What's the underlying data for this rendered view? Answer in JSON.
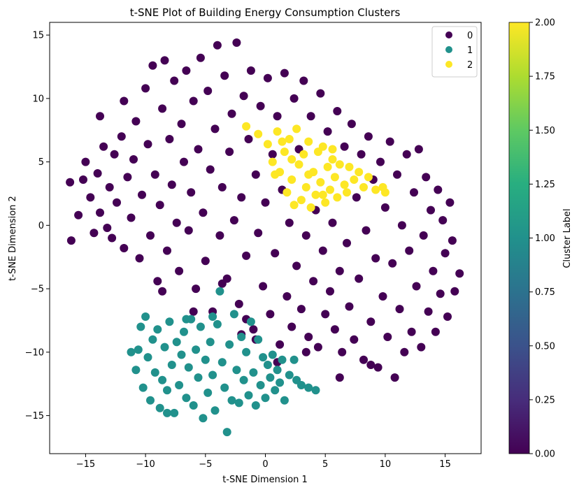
{
  "chart_data": {
    "type": "scatter",
    "title": "t-SNE Plot of Building Energy Consumption Clusters",
    "xlabel": "t-SNE Dimension 1",
    "ylabel": "t-SNE Dimension 2",
    "xlim": [
      -18,
      18
    ],
    "ylim": [
      -18,
      16
    ],
    "xticks": [
      -15,
      -10,
      -5,
      0,
      5,
      10,
      15
    ],
    "yticks": [
      -15,
      -10,
      -5,
      0,
      5,
      10,
      15
    ],
    "grid": false,
    "legend": {
      "placement": "top-right",
      "entries": [
        "0",
        "1",
        "2"
      ]
    },
    "colorbar": {
      "label": "Cluster Label",
      "range": [
        0,
        2
      ],
      "ticks": [
        "0.00",
        "0.25",
        "0.50",
        "0.75",
        "1.00",
        "1.25",
        "1.50",
        "1.75",
        "2.00"
      ],
      "colormap": "viridis"
    },
    "series": [
      {
        "name": "0",
        "color": "#440154",
        "points": [
          [
            -16.3,
            3.4
          ],
          [
            -16.2,
            -1.2
          ],
          [
            -15.6,
            0.8
          ],
          [
            -15.2,
            3.6
          ],
          [
            -15.0,
            5.0
          ],
          [
            -14.6,
            2.2
          ],
          [
            -14.3,
            -0.6
          ],
          [
            -14.0,
            4.1
          ],
          [
            -13.8,
            1.0
          ],
          [
            -13.5,
            6.2
          ],
          [
            -13.2,
            -0.2
          ],
          [
            -13.0,
            3.0
          ],
          [
            -12.6,
            5.6
          ],
          [
            -12.4,
            1.8
          ],
          [
            -12.0,
            7.0
          ],
          [
            -11.8,
            -1.8
          ],
          [
            -11.5,
            3.8
          ],
          [
            -11.2,
            0.6
          ],
          [
            -11.0,
            5.2
          ],
          [
            -10.8,
            8.2
          ],
          [
            -10.5,
            -2.6
          ],
          [
            -10.3,
            2.4
          ],
          [
            -10.0,
            10.8
          ],
          [
            -9.8,
            6.4
          ],
          [
            -9.6,
            -0.8
          ],
          [
            -9.4,
            12.6
          ],
          [
            -9.2,
            4.0
          ],
          [
            -9.0,
            -4.4
          ],
          [
            -8.8,
            1.6
          ],
          [
            -8.6,
            9.2
          ],
          [
            -8.4,
            13.0
          ],
          [
            -8.2,
            -2.0
          ],
          [
            -8.0,
            6.8
          ],
          [
            -7.8,
            3.2
          ],
          [
            -7.6,
            11.4
          ],
          [
            -7.4,
            0.2
          ],
          [
            -7.2,
            -3.6
          ],
          [
            -7.0,
            8.0
          ],
          [
            -6.8,
            5.0
          ],
          [
            -6.6,
            12.2
          ],
          [
            -6.4,
            -0.4
          ],
          [
            -6.2,
            2.6
          ],
          [
            -6.0,
            9.8
          ],
          [
            -5.8,
            -5.0
          ],
          [
            -5.6,
            6.0
          ],
          [
            -5.4,
            13.2
          ],
          [
            -5.2,
            1.0
          ],
          [
            -5.0,
            -2.8
          ],
          [
            -4.8,
            10.6
          ],
          [
            -4.6,
            4.4
          ],
          [
            -4.4,
            -6.8
          ],
          [
            -4.2,
            7.6
          ],
          [
            -4.0,
            14.2
          ],
          [
            -3.8,
            -0.8
          ],
          [
            -3.6,
            3.0
          ],
          [
            -3.4,
            11.8
          ],
          [
            -3.2,
            -4.2
          ],
          [
            -3.0,
            5.8
          ],
          [
            -2.8,
            8.8
          ],
          [
            -2.6,
            0.4
          ],
          [
            -2.4,
            14.4
          ],
          [
            -2.2,
            -6.2
          ],
          [
            -2.0,
            2.2
          ],
          [
            -1.8,
            10.2
          ],
          [
            -1.6,
            -2.4
          ],
          [
            -1.4,
            6.8
          ],
          [
            -1.2,
            12.2
          ],
          [
            -1.0,
            -8.2
          ],
          [
            -0.8,
            4.0
          ],
          [
            -0.6,
            -0.6
          ],
          [
            -0.4,
            9.4
          ],
          [
            -0.2,
            -4.8
          ],
          [
            0.0,
            1.8
          ],
          [
            0.2,
            11.6
          ],
          [
            0.4,
            -7.0
          ],
          [
            0.6,
            5.6
          ],
          [
            0.8,
            -2.2
          ],
          [
            1.0,
            8.6
          ],
          [
            1.2,
            -9.4
          ],
          [
            1.4,
            2.8
          ],
          [
            1.6,
            12.0
          ],
          [
            1.8,
            -5.6
          ],
          [
            2.0,
            0.2
          ],
          [
            2.2,
            -8.0
          ],
          [
            2.4,
            10.0
          ],
          [
            2.6,
            -3.2
          ],
          [
            2.8,
            6.0
          ],
          [
            3.0,
            -6.6
          ],
          [
            3.2,
            11.4
          ],
          [
            3.4,
            -0.8
          ],
          [
            3.6,
            -8.8
          ],
          [
            3.8,
            8.6
          ],
          [
            4.0,
            -4.4
          ],
          [
            4.2,
            1.2
          ],
          [
            4.4,
            -9.6
          ],
          [
            4.6,
            10.4
          ],
          [
            4.8,
            -2.0
          ],
          [
            5.0,
            -7.0
          ],
          [
            5.2,
            7.4
          ],
          [
            5.4,
            -5.2
          ],
          [
            5.6,
            0.2
          ],
          [
            5.8,
            -8.2
          ],
          [
            6.0,
            9.0
          ],
          [
            6.2,
            -3.6
          ],
          [
            6.4,
            -10.0
          ],
          [
            6.6,
            6.2
          ],
          [
            6.8,
            -1.4
          ],
          [
            7.0,
            -6.4
          ],
          [
            7.2,
            8.0
          ],
          [
            7.4,
            -9.0
          ],
          [
            7.6,
            2.2
          ],
          [
            7.8,
            -4.2
          ],
          [
            8.0,
            5.6
          ],
          [
            8.2,
            -10.6
          ],
          [
            8.4,
            -0.4
          ],
          [
            8.6,
            7.0
          ],
          [
            8.8,
            -7.6
          ],
          [
            9.0,
            3.6
          ],
          [
            9.2,
            -2.6
          ],
          [
            9.4,
            -11.2
          ],
          [
            9.6,
            5.0
          ],
          [
            9.8,
            -5.6
          ],
          [
            10.0,
            1.4
          ],
          [
            10.2,
            -8.8
          ],
          [
            10.4,
            6.6
          ],
          [
            10.6,
            -3.0
          ],
          [
            10.8,
            -12.0
          ],
          [
            11.0,
            4.0
          ],
          [
            11.2,
            -6.6
          ],
          [
            11.4,
            0.0
          ],
          [
            11.6,
            -10.0
          ],
          [
            11.8,
            5.6
          ],
          [
            12.0,
            -2.0
          ],
          [
            12.2,
            -8.4
          ],
          [
            12.4,
            2.6
          ],
          [
            12.6,
            -4.8
          ],
          [
            12.8,
            6.0
          ],
          [
            13.0,
            -9.6
          ],
          [
            13.2,
            -0.8
          ],
          [
            13.4,
            3.8
          ],
          [
            13.6,
            -6.8
          ],
          [
            13.8,
            1.2
          ],
          [
            14.0,
            -3.6
          ],
          [
            14.2,
            -8.4
          ],
          [
            14.4,
            2.8
          ],
          [
            14.6,
            -5.4
          ],
          [
            14.8,
            0.4
          ],
          [
            15.0,
            -2.2
          ],
          [
            15.2,
            -7.2
          ],
          [
            15.4,
            1.8
          ],
          [
            15.8,
            -5.2
          ],
          [
            16.2,
            -3.8
          ],
          [
            15.6,
            -1.2
          ],
          [
            -12.8,
            -1.0
          ],
          [
            -8.6,
            -5.2
          ],
          [
            -2.0,
            -8.6
          ],
          [
            -0.8,
            -9.0
          ],
          [
            -1.6,
            -7.4
          ],
          [
            -3.6,
            -4.6
          ],
          [
            1.0,
            -10.8
          ],
          [
            -6.0,
            -6.8
          ],
          [
            3.4,
            -10.0
          ],
          [
            6.2,
            -12.0
          ],
          [
            8.8,
            -11.0
          ],
          [
            -11.8,
            9.8
          ],
          [
            -13.8,
            8.6
          ]
        ]
      },
      {
        "name": "1",
        "color": "#21918c",
        "points": [
          [
            -11.2,
            -10.0
          ],
          [
            -10.8,
            -11.4
          ],
          [
            -10.4,
            -8.0
          ],
          [
            -10.2,
            -12.8
          ],
          [
            -10.0,
            -7.2
          ],
          [
            -9.8,
            -10.4
          ],
          [
            -9.6,
            -13.8
          ],
          [
            -9.4,
            -9.0
          ],
          [
            -9.2,
            -11.6
          ],
          [
            -9.0,
            -8.2
          ],
          [
            -8.8,
            -14.4
          ],
          [
            -8.6,
            -12.2
          ],
          [
            -8.4,
            -9.6
          ],
          [
            -8.2,
            -13.0
          ],
          [
            -8.0,
            -7.6
          ],
          [
            -7.8,
            -11.0
          ],
          [
            -7.6,
            -14.8
          ],
          [
            -7.4,
            -9.2
          ],
          [
            -7.2,
            -12.6
          ],
          [
            -7.0,
            -10.2
          ],
          [
            -6.8,
            -8.4
          ],
          [
            -6.6,
            -13.6
          ],
          [
            -6.4,
            -11.2
          ],
          [
            -6.2,
            -7.4
          ],
          [
            -6.0,
            -14.2
          ],
          [
            -5.8,
            -9.8
          ],
          [
            -5.6,
            -12.0
          ],
          [
            -5.4,
            -8.0
          ],
          [
            -5.2,
            -15.2
          ],
          [
            -5.0,
            -10.6
          ],
          [
            -4.8,
            -13.2
          ],
          [
            -4.6,
            -9.2
          ],
          [
            -4.4,
            -11.8
          ],
          [
            -4.2,
            -14.6
          ],
          [
            -4.0,
            -7.8
          ],
          [
            -3.8,
            -5.2
          ],
          [
            -3.6,
            -10.8
          ],
          [
            -3.4,
            -12.8
          ],
          [
            -3.2,
            -16.3
          ],
          [
            -3.0,
            -9.4
          ],
          [
            -2.8,
            -13.8
          ],
          [
            -2.6,
            -7.0
          ],
          [
            -2.4,
            -11.4
          ],
          [
            -2.2,
            -14.0
          ],
          [
            -2.0,
            -8.8
          ],
          [
            -1.8,
            -12.2
          ],
          [
            -1.6,
            -10.0
          ],
          [
            -1.4,
            -13.4
          ],
          [
            -1.2,
            -7.6
          ],
          [
            -1.0,
            -11.6
          ],
          [
            -0.8,
            -14.2
          ],
          [
            -0.6,
            -9.0
          ],
          [
            -0.4,
            -12.6
          ],
          [
            -0.2,
            -10.4
          ],
          [
            0.0,
            -13.6
          ],
          [
            0.2,
            -11.0
          ],
          [
            0.4,
            -12.0
          ],
          [
            0.6,
            -10.2
          ],
          [
            0.8,
            -13.0
          ],
          [
            1.0,
            -11.4
          ],
          [
            1.2,
            -12.4
          ],
          [
            1.4,
            -10.6
          ],
          [
            1.6,
            -13.8
          ],
          [
            2.0,
            -11.8
          ],
          [
            2.4,
            -10.6
          ],
          [
            2.6,
            -12.2
          ],
          [
            3.0,
            -12.6
          ],
          [
            3.6,
            -12.8
          ],
          [
            4.2,
            -13.0
          ],
          [
            -6.6,
            -7.4
          ],
          [
            -4.4,
            -7.2
          ],
          [
            -8.2,
            -14.8
          ],
          [
            -10.6,
            -9.8
          ]
        ]
      },
      {
        "name": "2",
        "color": "#fde725",
        "points": [
          [
            -1.6,
            7.8
          ],
          [
            -0.6,
            7.2
          ],
          [
            0.2,
            6.4
          ],
          [
            0.6,
            5.0
          ],
          [
            1.0,
            7.4
          ],
          [
            1.2,
            4.2
          ],
          [
            1.6,
            5.8
          ],
          [
            1.8,
            2.6
          ],
          [
            2.0,
            6.8
          ],
          [
            2.2,
            3.6
          ],
          [
            2.4,
            1.6
          ],
          [
            2.6,
            7.6
          ],
          [
            2.8,
            4.8
          ],
          [
            3.0,
            2.0
          ],
          [
            3.2,
            5.6
          ],
          [
            3.4,
            3.0
          ],
          [
            3.6,
            6.6
          ],
          [
            3.8,
            1.4
          ],
          [
            4.0,
            4.2
          ],
          [
            4.2,
            2.4
          ],
          [
            4.4,
            5.8
          ],
          [
            4.6,
            3.4
          ],
          [
            4.8,
            6.2
          ],
          [
            5.0,
            1.8
          ],
          [
            5.2,
            4.6
          ],
          [
            5.4,
            2.8
          ],
          [
            5.6,
            5.2
          ],
          [
            5.8,
            3.8
          ],
          [
            6.0,
            2.2
          ],
          [
            6.2,
            4.8
          ],
          [
            6.6,
            3.2
          ],
          [
            7.0,
            4.6
          ],
          [
            7.4,
            3.6
          ],
          [
            7.8,
            4.2
          ],
          [
            8.2,
            3.0
          ],
          [
            8.6,
            3.8
          ],
          [
            9.2,
            2.8
          ],
          [
            9.8,
            3.0
          ],
          [
            10.0,
            2.6
          ],
          [
            1.4,
            6.6
          ],
          [
            0.8,
            4.0
          ],
          [
            2.2,
            5.2
          ],
          [
            3.6,
            4.0
          ],
          [
            4.8,
            2.4
          ],
          [
            5.6,
            6.0
          ],
          [
            6.8,
            2.6
          ]
        ]
      }
    ]
  }
}
